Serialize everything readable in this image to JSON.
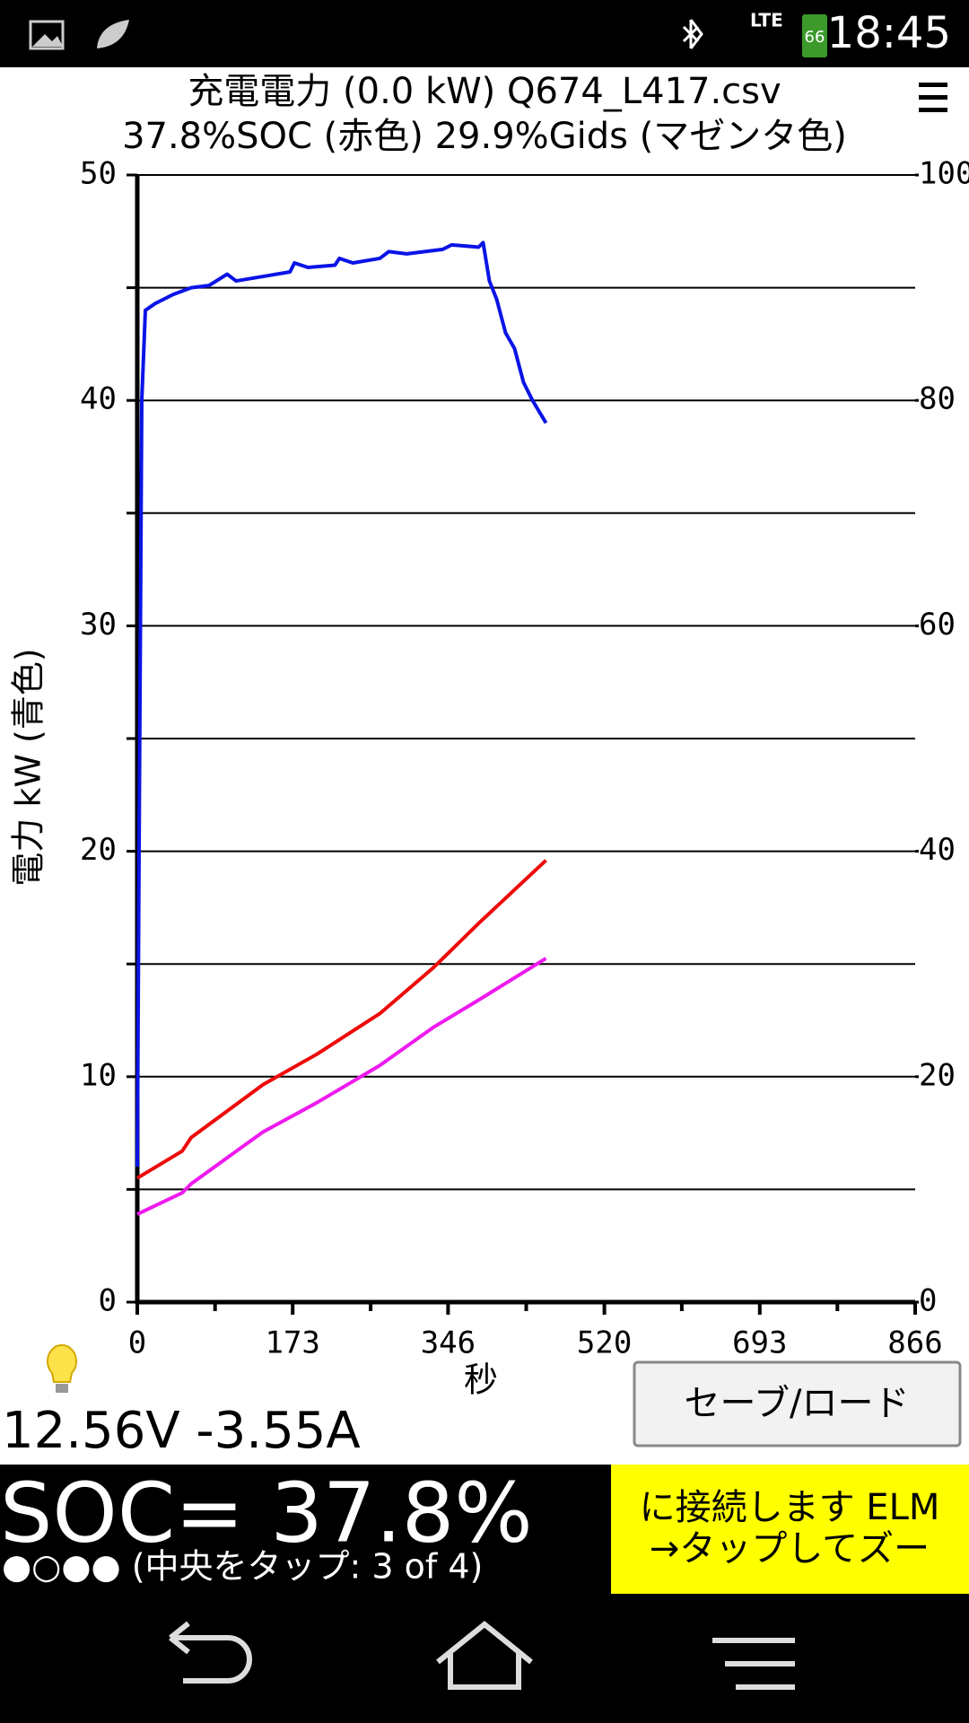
{
  "status_bar": {
    "network": "LTE",
    "battery": "66",
    "time": "18:45"
  },
  "chart_data": {
    "type": "line",
    "title": "充電電力 (0.0 kW)   Q674_L417.csv",
    "subtitle": "37.8%SOC (赤色)   29.9%Gids (マゼンタ色)",
    "y_label": "電力 kW (青色)",
    "x_label": "秒",
    "xlim": [
      0,
      866
    ],
    "xticks": [
      0,
      173,
      346,
      520,
      693,
      866
    ],
    "x_minor_ticks": [
      86.6,
      259.8,
      433,
      606.2,
      779.4
    ],
    "ylim": [
      0,
      50
    ],
    "yticks": [
      0,
      10,
      20,
      30,
      40,
      50
    ],
    "y_minor_ticks": [
      5,
      15,
      25,
      35,
      45
    ],
    "y2lim": [
      0,
      100
    ],
    "y2ticks": [
      0,
      20,
      40,
      60,
      80,
      100
    ],
    "grid": true,
    "series": [
      {
        "color": "#0a14e6",
        "x": [
          0,
          2,
          5,
          9,
          20,
          40,
          60,
          80,
          100,
          110,
          140,
          170,
          175,
          190,
          220,
          225,
          240,
          270,
          280,
          300,
          340,
          350,
          380,
          385,
          392,
          400,
          410,
          420,
          430,
          440,
          455
        ],
        "values": [
          6,
          20,
          40,
          44,
          44.3,
          44.7,
          45,
          45.1,
          45.6,
          45.3,
          45.5,
          45.7,
          46.1,
          45.9,
          46,
          46.3,
          46.1,
          46.3,
          46.6,
          46.5,
          46.7,
          46.9,
          46.8,
          47,
          45.3,
          44.5,
          43,
          42.3,
          40.8,
          40,
          39
        ]
      },
      {
        "color": "#ee0a0a",
        "axis": "y2",
        "x": [
          0,
          50,
          60,
          140,
          200,
          270,
          330,
          380,
          455
        ],
        "values": [
          11,
          13.4,
          14.6,
          19.3,
          22,
          25.6,
          29.7,
          33.6,
          39.2
        ]
      },
      {
        "color": "#ee1aee",
        "axis": "y2",
        "x": [
          0,
          50,
          60,
          140,
          200,
          270,
          330,
          380,
          455
        ],
        "values": [
          7.8,
          9.7,
          10.5,
          15.1,
          17.7,
          21,
          24.4,
          26.8,
          30.5
        ]
      }
    ]
  },
  "footer": {
    "voltage_current": "12.56V -3.55A",
    "button": "セーブ/ロード",
    "soc": "SOC= 37.8%",
    "page_indicator": "●○●● (中央をタップ: 3 of 4)",
    "notice_line1": "に接続します ELM",
    "notice_line2": "→タップしてズー"
  }
}
